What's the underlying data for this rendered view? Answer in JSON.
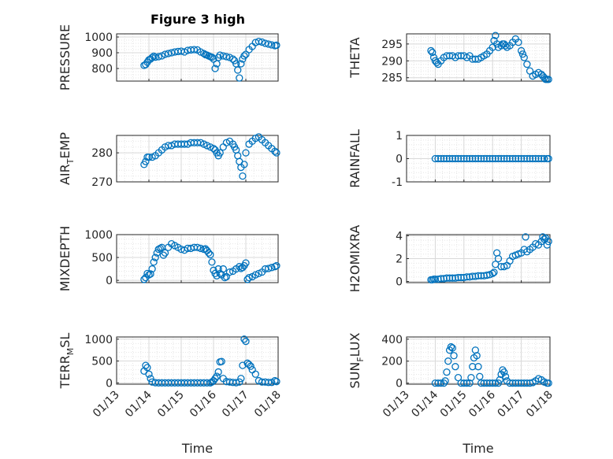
{
  "figure": {
    "title": "Figure 3 high"
  },
  "colors": {
    "marker": "#0072BD",
    "axis": "#262626",
    "grid": "#d9d9d9",
    "background": "#ffffff"
  },
  "chart_data": [
    {
      "type": "scatter",
      "title": "Figure 3 high",
      "ylabel_main": "PRESSURE",
      "ylabel_sub": "",
      "ylim": [
        720,
        1020
      ],
      "yticks": [
        800,
        900,
        1000
      ],
      "x": [
        13.85,
        13.9,
        13.95,
        14.0,
        14.05,
        14.1,
        14.15,
        14.2,
        14.3,
        14.4,
        14.5,
        14.6,
        14.7,
        14.8,
        14.9,
        15.0,
        15.1,
        15.2,
        15.3,
        15.4,
        15.5,
        15.6,
        15.7,
        15.75,
        15.8,
        15.85,
        15.9,
        15.95,
        16.0,
        16.05,
        16.1,
        16.15,
        16.2,
        16.3,
        16.4,
        16.5,
        16.6,
        16.65,
        16.7,
        16.75,
        16.8,
        16.85,
        16.9,
        16.95,
        17.0,
        17.1,
        17.2,
        17.3,
        17.4,
        17.5,
        17.6,
        17.7,
        17.8,
        17.9,
        17.95
      ],
      "y": [
        820,
        825,
        840,
        855,
        860,
        870,
        878,
        872,
        875,
        880,
        890,
        895,
        900,
        905,
        908,
        910,
        905,
        915,
        918,
        920,
        918,
        905,
        895,
        888,
        885,
        880,
        875,
        872,
        860,
        800,
        830,
        870,
        885,
        880,
        875,
        870,
        860,
        850,
        830,
        790,
        740,
        830,
        860,
        880,
        890,
        920,
        940,
        965,
        972,
        968,
        960,
        955,
        950,
        945,
        948
      ]
    },
    {
      "type": "scatter",
      "ylabel_main": "THETA",
      "ylabel_sub": "",
      "ylim": [
        284,
        298
      ],
      "yticks": [
        285,
        290,
        295
      ],
      "x": [
        13.85,
        13.9,
        13.95,
        14.0,
        14.05,
        14.1,
        14.2,
        14.3,
        14.4,
        14.5,
        14.6,
        14.7,
        14.8,
        14.9,
        15.0,
        15.1,
        15.2,
        15.3,
        15.4,
        15.5,
        15.6,
        15.7,
        15.8,
        15.9,
        16.0,
        16.05,
        16.1,
        16.15,
        16.2,
        16.3,
        16.35,
        16.4,
        16.45,
        16.5,
        16.6,
        16.7,
        16.8,
        16.9,
        17.0,
        17.05,
        17.1,
        17.2,
        17.3,
        17.4,
        17.5,
        17.6,
        17.7,
        17.75,
        17.8,
        17.85,
        17.9,
        17.95
      ],
      "y": [
        293,
        292.5,
        291,
        290,
        289.5,
        289,
        290,
        291,
        291.5,
        291.5,
        291.5,
        291,
        291.5,
        291.5,
        291.5,
        291,
        291.5,
        290.5,
        290.5,
        290.5,
        291,
        291.5,
        292,
        293,
        294,
        296,
        297.5,
        295,
        294,
        294.5,
        295,
        295,
        294.5,
        294,
        294.5,
        295.5,
        296.5,
        295.5,
        293,
        292,
        291,
        289,
        287,
        285.5,
        286,
        286.5,
        286,
        285.5,
        285,
        284.5,
        284.5,
        284.5
      ]
    },
    {
      "type": "scatter",
      "ylabel_main": "AIR",
      "ylabel_sub": "T",
      "ylabel_tail": "EMP",
      "ylim": [
        270,
        286
      ],
      "yticks": [
        270,
        280
      ],
      "x": [
        13.85,
        13.9,
        13.95,
        14.0,
        14.1,
        14.2,
        14.3,
        14.4,
        14.5,
        14.6,
        14.7,
        14.8,
        14.9,
        15.0,
        15.1,
        15.2,
        15.3,
        15.4,
        15.5,
        15.6,
        15.7,
        15.8,
        15.9,
        16.0,
        16.05,
        16.1,
        16.15,
        16.2,
        16.3,
        16.4,
        16.5,
        16.6,
        16.65,
        16.7,
        16.75,
        16.8,
        16.85,
        16.9,
        16.95,
        17.0,
        17.1,
        17.2,
        17.3,
        17.4,
        17.5,
        17.6,
        17.7,
        17.8,
        17.9,
        17.95
      ],
      "y": [
        276,
        277,
        278.5,
        278.5,
        278.5,
        279,
        280,
        281,
        282,
        282.5,
        282.5,
        283,
        283,
        283,
        283,
        283,
        283.5,
        283.5,
        283.5,
        283.5,
        283,
        282.5,
        282,
        281.5,
        281,
        280,
        279,
        280,
        282,
        283.5,
        284,
        283,
        282,
        281,
        279,
        277,
        275,
        272,
        276,
        280,
        283,
        284,
        285,
        285.5,
        284.5,
        283.5,
        282.5,
        281.5,
        280.5,
        280
      ]
    },
    {
      "type": "scatter",
      "ylabel_main": "RAINFALL",
      "ylabel_sub": "",
      "ylim": [
        -1,
        1
      ],
      "yticks": [
        -1,
        0,
        1
      ],
      "x": [
        14.0,
        14.1,
        14.2,
        14.3,
        14.4,
        14.5,
        14.6,
        14.7,
        14.8,
        14.9,
        15.0,
        15.1,
        15.2,
        15.3,
        15.4,
        15.5,
        15.6,
        15.7,
        15.8,
        15.9,
        16.0,
        16.1,
        16.2,
        16.3,
        16.4,
        16.5,
        16.6,
        16.7,
        16.8,
        16.9,
        17.0,
        17.1,
        17.2,
        17.3,
        17.4,
        17.5,
        17.6,
        17.7,
        17.8,
        17.9,
        17.95
      ],
      "y": [
        0,
        0,
        0,
        0,
        0,
        0,
        0,
        0,
        0,
        0,
        0,
        0,
        0,
        0,
        0,
        0,
        0,
        0,
        0,
        0,
        0,
        0,
        0,
        0,
        0,
        0,
        0,
        0,
        0,
        0,
        0,
        0,
        0,
        0,
        0,
        0,
        0,
        0,
        0,
        0,
        0
      ]
    },
    {
      "type": "scatter",
      "ylabel_main": "MIXDEPTH",
      "ylabel_sub": "",
      "ylim": [
        -50,
        1000
      ],
      "yticks": [
        0,
        500,
        1000
      ],
      "x": [
        13.85,
        13.9,
        13.95,
        14.0,
        14.05,
        14.1,
        14.15,
        14.2,
        14.25,
        14.3,
        14.35,
        14.4,
        14.45,
        14.5,
        14.6,
        14.7,
        14.8,
        14.9,
        15.0,
        15.1,
        15.2,
        15.3,
        15.4,
        15.5,
        15.6,
        15.7,
        15.75,
        15.8,
        15.85,
        15.9,
        15.95,
        16.0,
        16.05,
        16.1,
        16.15,
        16.2,
        16.25,
        16.3,
        16.35,
        16.4,
        16.5,
        16.6,
        16.7,
        16.8,
        16.85,
        16.9,
        16.95,
        17.0,
        17.05,
        17.1,
        17.2,
        17.3,
        17.4,
        17.5,
        17.6,
        17.7,
        17.8,
        17.9,
        17.95
      ],
      "y": [
        20,
        60,
        150,
        120,
        140,
        250,
        400,
        500,
        600,
        680,
        700,
        720,
        550,
        600,
        720,
        800,
        760,
        720,
        680,
        660,
        700,
        700,
        720,
        720,
        700,
        680,
        690,
        650,
        600,
        560,
        400,
        220,
        150,
        100,
        250,
        150,
        120,
        250,
        60,
        80,
        180,
        200,
        250,
        300,
        260,
        280,
        320,
        380,
        20,
        60,
        80,
        120,
        150,
        180,
        250,
        260,
        280,
        300,
        320
      ]
    },
    {
      "type": "scatter",
      "ylabel_main": "H2OMIXRA",
      "ylabel_sub": "",
      "ylim": [
        -0.1,
        4.1
      ],
      "yticks": [
        0,
        2,
        4
      ],
      "x": [
        13.85,
        13.9,
        13.95,
        14.0,
        14.1,
        14.2,
        14.3,
        14.4,
        14.5,
        14.6,
        14.7,
        14.8,
        14.9,
        15.0,
        15.1,
        15.2,
        15.3,
        15.4,
        15.5,
        15.6,
        15.7,
        15.8,
        15.9,
        16.0,
        16.05,
        16.1,
        16.15,
        16.2,
        16.3,
        16.4,
        16.5,
        16.6,
        16.7,
        16.8,
        16.9,
        17.0,
        17.1,
        17.15,
        17.2,
        17.3,
        17.4,
        17.5,
        17.6,
        17.7,
        17.75,
        17.8,
        17.85,
        17.9,
        17.95
      ],
      "y": [
        0.15,
        0.15,
        0.2,
        0.2,
        0.2,
        0.25,
        0.25,
        0.3,
        0.3,
        0.3,
        0.3,
        0.35,
        0.35,
        0.35,
        0.4,
        0.4,
        0.45,
        0.45,
        0.5,
        0.5,
        0.5,
        0.55,
        0.6,
        0.7,
        0.8,
        1.5,
        2.5,
        2.0,
        1.3,
        1.3,
        1.4,
        1.8,
        2.2,
        2.3,
        2.4,
        2.5,
        2.8,
        3.9,
        2.6,
        2.8,
        3.0,
        3.3,
        3.2,
        3.5,
        3.9,
        3.7,
        3.8,
        3.2,
        3.5
      ]
    },
    {
      "type": "scatter",
      "ylabel_main": "TERR",
      "ylabel_sub": "M",
      "ylabel_tail": "SL",
      "ylim": [
        -30,
        1050
      ],
      "yticks": [
        0,
        500,
        1000
      ],
      "x": [
        13.85,
        13.9,
        13.95,
        14.0,
        14.05,
        14.1,
        14.2,
        14.3,
        14.4,
        14.5,
        14.6,
        14.7,
        14.8,
        14.9,
        15.0,
        15.1,
        15.2,
        15.3,
        15.4,
        15.5,
        15.6,
        15.7,
        15.8,
        15.9,
        15.95,
        16.0,
        16.05,
        16.1,
        16.15,
        16.2,
        16.25,
        16.3,
        16.4,
        16.5,
        16.6,
        16.7,
        16.8,
        16.85,
        16.9,
        16.95,
        17.0,
        17.05,
        17.1,
        17.15,
        17.2,
        17.3,
        17.4,
        17.5,
        17.6,
        17.7,
        17.8,
        17.9,
        17.95
      ],
      "y": [
        270,
        400,
        350,
        200,
        100,
        20,
        5,
        0,
        0,
        0,
        0,
        0,
        0,
        0,
        0,
        0,
        0,
        0,
        0,
        0,
        0,
        0,
        0,
        0,
        20,
        50,
        100,
        150,
        250,
        480,
        490,
        100,
        30,
        20,
        10,
        5,
        20,
        100,
        400,
        1000,
        950,
        450,
        420,
        380,
        300,
        200,
        50,
        20,
        20,
        10,
        10,
        50,
        30
      ]
    },
    {
      "type": "scatter",
      "ylabel_main": "SUN",
      "ylabel_sub": "F",
      "ylabel_tail": "LUX",
      "ylim": [
        -10,
        420
      ],
      "yticks": [
        0,
        200,
        400
      ],
      "x": [
        14.0,
        14.1,
        14.2,
        14.3,
        14.35,
        14.4,
        14.45,
        14.5,
        14.55,
        14.6,
        14.65,
        14.7,
        14.8,
        14.9,
        15.0,
        15.1,
        15.2,
        15.25,
        15.3,
        15.35,
        15.4,
        15.45,
        15.5,
        15.55,
        15.6,
        15.7,
        15.8,
        15.9,
        16.0,
        16.1,
        16.2,
        16.25,
        16.3,
        16.35,
        16.4,
        16.45,
        16.5,
        16.6,
        16.7,
        16.8,
        16.9,
        17.0,
        17.1,
        17.2,
        17.3,
        17.4,
        17.5,
        17.6,
        17.7,
        17.8,
        17.9,
        17.95
      ],
      "y": [
        0,
        0,
        0,
        0,
        20,
        100,
        200,
        300,
        330,
        320,
        250,
        150,
        50,
        0,
        0,
        0,
        0,
        50,
        150,
        230,
        300,
        250,
        150,
        60,
        0,
        0,
        0,
        0,
        0,
        0,
        0,
        30,
        80,
        120,
        100,
        60,
        20,
        0,
        0,
        0,
        0,
        0,
        0,
        0,
        0,
        5,
        20,
        40,
        30,
        10,
        0,
        0
      ]
    }
  ],
  "x_axis": {
    "label": "Time",
    "tick_values": [
      13,
      14,
      15,
      16,
      17,
      18
    ],
    "tick_labels": [
      "01/13",
      "01/14",
      "01/15",
      "01/16",
      "01/17",
      "01/18"
    ]
  }
}
